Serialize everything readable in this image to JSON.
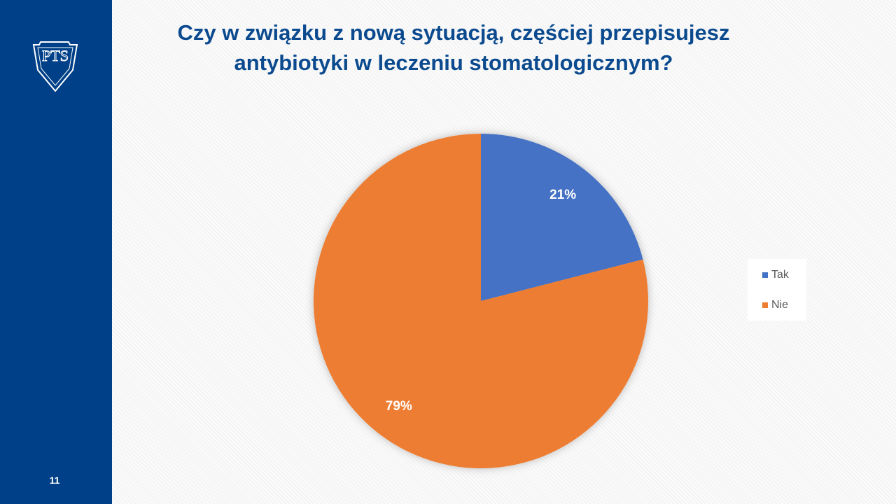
{
  "slide": {
    "logo": "PTS",
    "page_number": "11"
  },
  "chart_data": {
    "type": "pie",
    "title": "Czy w związku z nową sytuacją, częściej przepisujesz antybiotyki w leczeniu stomatologicznym?",
    "categories": [
      "Tak",
      "Nie"
    ],
    "values": [
      21,
      79
    ],
    "value_labels": [
      "21%",
      "79%"
    ],
    "colors": [
      "#4472c4",
      "#ed7d31"
    ],
    "legend": "right"
  }
}
